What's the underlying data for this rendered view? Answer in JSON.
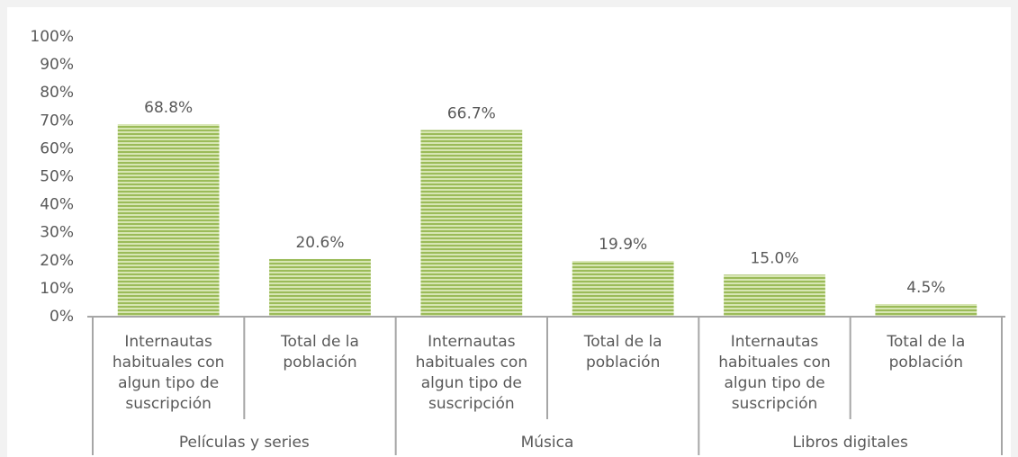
{
  "chart_data": {
    "type": "bar",
    "categories": [
      "Internautas habituales con algun tipo de suscripción",
      "Total de la población",
      "Internautas habituales con algun tipo de suscripción",
      "Total de la población",
      "Internautas habituales con algun tipo de suscripción",
      "Total de la población"
    ],
    "groups": [
      "Películas y series",
      "Música",
      "Libros digitales"
    ],
    "values": [
      68.8,
      20.6,
      66.7,
      19.9,
      15.0,
      4.5
    ],
    "value_labels": [
      "68.8%",
      "20.6%",
      "66.7%",
      "19.9%",
      "15.0%",
      "4.5%"
    ],
    "color": "#9bbb59",
    "ylim": [
      0,
      100
    ],
    "yticks": [
      {
        "value": 0,
        "label": "0%"
      },
      {
        "value": 10,
        "label": "10%"
      },
      {
        "value": 20,
        "label": "20%"
      },
      {
        "value": 30,
        "label": "30%"
      },
      {
        "value": 40,
        "label": "40%"
      },
      {
        "value": 50,
        "label": "50%"
      },
      {
        "value": 60,
        "label": "60%"
      },
      {
        "value": 70,
        "label": "70%"
      },
      {
        "value": 80,
        "label": "80%"
      },
      {
        "value": 90,
        "label": "90%"
      },
      {
        "value": 100,
        "label": "100%"
      }
    ],
    "grid": false
  }
}
